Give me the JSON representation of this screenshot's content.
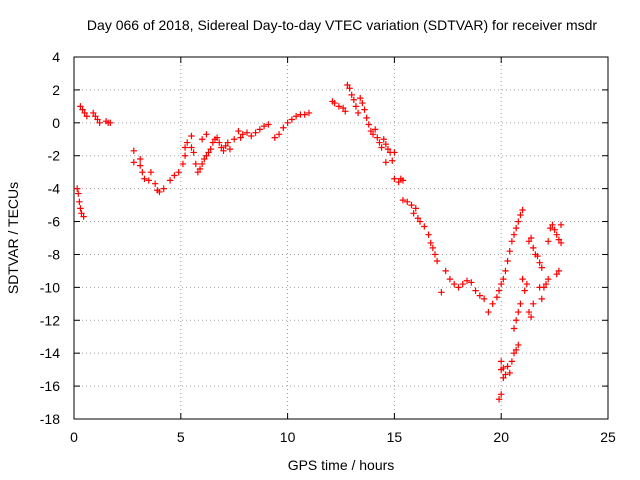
{
  "chart_data": {
    "type": "scatter",
    "title": "Day 066 of 2018, Sidereal Day-to-day VTEC variation (SDTVAR) for receiver msdr",
    "xlabel": "GPS time / hours",
    "ylabel": "SDTVAR / TECUs",
    "xlim": [
      0,
      25
    ],
    "ylim": [
      -18,
      4
    ],
    "x_ticks": [
      "0",
      "5",
      "10",
      "15",
      "20",
      "25"
    ],
    "y_ticks": [
      "4",
      "2",
      "0",
      "-2",
      "-4",
      "-6",
      "-8",
      "-10",
      "-12",
      "-14",
      "-16",
      "-18"
    ],
    "x_tick_values": [
      0,
      5,
      10,
      15,
      20,
      25
    ],
    "y_tick_values": [
      4,
      2,
      0,
      -2,
      -4,
      -6,
      -8,
      -10,
      -12,
      -14,
      -16,
      -18
    ],
    "grid": true,
    "marker": "+",
    "color": "#ff0000",
    "series": [
      {
        "name": "SDTVAR",
        "points": [
          [
            0.15,
            -4.0
          ],
          [
            0.2,
            -4.3
          ],
          [
            0.25,
            -4.8
          ],
          [
            0.3,
            -5.2
          ],
          [
            0.35,
            -5.5
          ],
          [
            0.45,
            -5.7
          ],
          [
            0.3,
            1.0
          ],
          [
            0.4,
            0.8
          ],
          [
            0.5,
            0.6
          ],
          [
            0.6,
            0.4
          ],
          [
            0.9,
            0.6
          ],
          [
            1.0,
            0.4
          ],
          [
            1.1,
            0.2
          ],
          [
            1.2,
            0.0
          ],
          [
            1.5,
            0.1
          ],
          [
            1.6,
            0.0
          ],
          [
            1.7,
            0.0
          ],
          [
            2.8,
            -1.7
          ],
          [
            2.8,
            -2.4
          ],
          [
            3.1,
            -2.2
          ],
          [
            3.1,
            -2.6
          ],
          [
            3.2,
            -3.0
          ],
          [
            3.3,
            -3.4
          ],
          [
            3.5,
            -3.5
          ],
          [
            3.6,
            -3.0
          ],
          [
            3.8,
            -3.7
          ],
          [
            3.9,
            -4.1
          ],
          [
            4.0,
            -4.2
          ],
          [
            4.2,
            -4.0
          ],
          [
            4.5,
            -3.5
          ],
          [
            4.7,
            -3.2
          ],
          [
            4.9,
            -3.0
          ],
          [
            5.1,
            -2.5
          ],
          [
            5.2,
            -2.0
          ],
          [
            5.2,
            -1.5
          ],
          [
            5.3,
            -1.2
          ],
          [
            5.5,
            -1.5
          ],
          [
            5.5,
            -0.8
          ],
          [
            5.6,
            -1.8
          ],
          [
            5.7,
            -2.5
          ],
          [
            5.8,
            -3.0
          ],
          [
            5.9,
            -2.8
          ],
          [
            6.0,
            -2.5
          ],
          [
            6.0,
            -1.0
          ],
          [
            6.1,
            -2.2
          ],
          [
            6.2,
            -2.0
          ],
          [
            6.2,
            -0.7
          ],
          [
            6.3,
            -1.8
          ],
          [
            6.4,
            -1.6
          ],
          [
            6.5,
            -1.2
          ],
          [
            6.6,
            -1.0
          ],
          [
            6.7,
            -0.9
          ],
          [
            6.8,
            -1.2
          ],
          [
            6.9,
            -1.5
          ],
          [
            7.0,
            -1.7
          ],
          [
            7.1,
            -1.4
          ],
          [
            7.2,
            -1.2
          ],
          [
            7.3,
            -1.6
          ],
          [
            7.5,
            -1.0
          ],
          [
            7.7,
            -0.5
          ],
          [
            7.8,
            -0.9
          ],
          [
            7.9,
            -0.7
          ],
          [
            8.1,
            -0.6
          ],
          [
            8.3,
            -0.8
          ],
          [
            8.5,
            -0.6
          ],
          [
            8.7,
            -0.4
          ],
          [
            8.9,
            -0.2
          ],
          [
            9.1,
            -0.1
          ],
          [
            9.4,
            -0.9
          ],
          [
            9.6,
            -0.7
          ],
          [
            9.8,
            -0.3
          ],
          [
            10.0,
            0.0
          ],
          [
            10.2,
            0.2
          ],
          [
            10.4,
            0.4
          ],
          [
            10.6,
            0.5
          ],
          [
            10.8,
            0.5
          ],
          [
            11.0,
            0.6
          ],
          [
            12.1,
            1.3
          ],
          [
            12.2,
            1.2
          ],
          [
            12.4,
            1.0
          ],
          [
            12.6,
            0.9
          ],
          [
            12.7,
            0.7
          ],
          [
            12.8,
            2.3
          ],
          [
            12.9,
            2.1
          ],
          [
            13.0,
            1.7
          ],
          [
            13.1,
            1.4
          ],
          [
            13.2,
            1.0
          ],
          [
            13.3,
            0.6
          ],
          [
            13.4,
            1.5
          ],
          [
            13.5,
            1.2
          ],
          [
            13.6,
            0.8
          ],
          [
            13.7,
            0.3
          ],
          [
            13.8,
            -0.1
          ],
          [
            13.9,
            -0.5
          ],
          [
            14.0,
            -0.7
          ],
          [
            14.1,
            -0.4
          ],
          [
            14.2,
            -0.9
          ],
          [
            14.3,
            -1.2
          ],
          [
            14.4,
            -1.5
          ],
          [
            14.5,
            -1.0
          ],
          [
            14.6,
            -1.3
          ],
          [
            14.7,
            -1.6
          ],
          [
            14.8,
            -1.8
          ],
          [
            14.9,
            -2.3
          ],
          [
            15.0,
            -1.8
          ],
          [
            14.6,
            -2.4
          ],
          [
            15.0,
            -3.4
          ],
          [
            15.2,
            -3.6
          ],
          [
            15.3,
            -3.4
          ],
          [
            15.4,
            -3.5
          ],
          [
            15.4,
            -4.7
          ],
          [
            15.6,
            -4.8
          ],
          [
            15.8,
            -5.0
          ],
          [
            15.9,
            -5.5
          ],
          [
            16.0,
            -5.2
          ],
          [
            16.1,
            -5.8
          ],
          [
            16.2,
            -6.0
          ],
          [
            16.4,
            -6.3
          ],
          [
            16.6,
            -6.8
          ],
          [
            16.7,
            -7.3
          ],
          [
            16.8,
            -7.6
          ],
          [
            16.9,
            -8.0
          ],
          [
            17.0,
            -8.4
          ],
          [
            17.2,
            -10.3
          ],
          [
            17.4,
            -9.0
          ],
          [
            17.6,
            -9.5
          ],
          [
            17.8,
            -9.8
          ],
          [
            18.0,
            -10.0
          ],
          [
            18.2,
            -9.8
          ],
          [
            18.4,
            -9.6
          ],
          [
            18.6,
            -9.7
          ],
          [
            18.8,
            -10.2
          ],
          [
            19.0,
            -10.5
          ],
          [
            19.2,
            -10.7
          ],
          [
            19.4,
            -11.5
          ],
          [
            19.6,
            -11.0
          ],
          [
            19.8,
            -10.6
          ],
          [
            19.9,
            -10.2
          ],
          [
            19.9,
            -16.8
          ],
          [
            20.0,
            -16.5
          ],
          [
            20.0,
            -15.0
          ],
          [
            20.0,
            -14.5
          ],
          [
            20.1,
            -15.5
          ],
          [
            20.1,
            -14.9
          ],
          [
            20.2,
            -15.3
          ],
          [
            20.3,
            -14.8
          ],
          [
            20.4,
            -15.2
          ],
          [
            20.5,
            -14.5
          ],
          [
            20.6,
            -14.0
          ],
          [
            20.7,
            -13.8
          ],
          [
            20.8,
            -13.5
          ],
          [
            20.6,
            -12.5
          ],
          [
            20.7,
            -12.0
          ],
          [
            20.8,
            -11.5
          ],
          [
            20.9,
            -11.0
          ],
          [
            20.0,
            -9.8
          ],
          [
            20.1,
            -9.5
          ],
          [
            20.2,
            -9.0
          ],
          [
            20.3,
            -8.4
          ],
          [
            20.4,
            -7.8
          ],
          [
            20.5,
            -7.2
          ],
          [
            20.6,
            -6.8
          ],
          [
            20.7,
            -6.4
          ],
          [
            20.8,
            -6.0
          ],
          [
            20.9,
            -5.6
          ],
          [
            21.0,
            -5.3
          ],
          [
            21.0,
            -9.5
          ],
          [
            21.1,
            -10.2
          ],
          [
            21.2,
            -9.8
          ],
          [
            21.3,
            -11.5
          ],
          [
            21.4,
            -11.8
          ],
          [
            21.5,
            -11.0
          ],
          [
            21.3,
            -7.2
          ],
          [
            21.4,
            -7.0
          ],
          [
            21.5,
            -7.6
          ],
          [
            21.6,
            -8.0
          ],
          [
            21.7,
            -8.1
          ],
          [
            21.8,
            -8.5
          ],
          [
            21.9,
            -8.8
          ],
          [
            21.8,
            -10.0
          ],
          [
            21.9,
            -10.7
          ],
          [
            22.0,
            -10.0
          ],
          [
            22.1,
            -9.8
          ],
          [
            22.2,
            -9.5
          ],
          [
            22.2,
            -7.2
          ],
          [
            22.3,
            -6.4
          ],
          [
            22.4,
            -6.2
          ],
          [
            22.5,
            -6.5
          ],
          [
            22.6,
            -6.8
          ],
          [
            22.7,
            -7.1
          ],
          [
            22.6,
            -9.2
          ],
          [
            22.7,
            -9.0
          ],
          [
            22.8,
            -6.2
          ],
          [
            22.8,
            -7.3
          ]
        ]
      }
    ]
  }
}
